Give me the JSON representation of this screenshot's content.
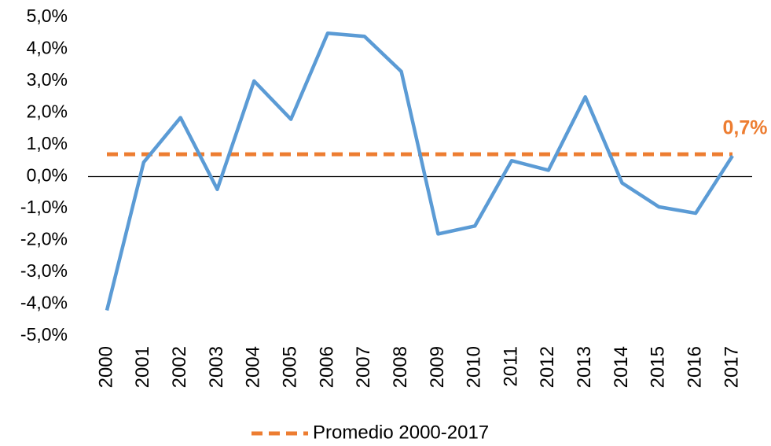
{
  "chart_data": {
    "type": "line",
    "categories": [
      "2000",
      "2001",
      "2002",
      "2003",
      "2004",
      "2005",
      "2006",
      "2007",
      "2008",
      "2009",
      "2010",
      "2011",
      "2012",
      "2013",
      "2014",
      "2015",
      "2016",
      "2017"
    ],
    "series": [
      {
        "color": "#5b9bd5",
        "values": [
          -4.2,
          0.45,
          1.85,
          -0.4,
          3.0,
          1.8,
          4.5,
          4.4,
          3.3,
          -1.8,
          -1.55,
          0.5,
          0.2,
          2.5,
          -0.2,
          -0.95,
          -1.15,
          0.65
        ]
      }
    ],
    "average": {
      "name": "Promedio 2000-2017",
      "color": "#ed7d31",
      "value": 0.7,
      "value_label": "0,7%"
    },
    "ylim": [
      -5,
      5
    ],
    "yticks": [
      {
        "value": -5,
        "label": "-5,0%"
      },
      {
        "value": -4,
        "label": "-4,0%"
      },
      {
        "value": -3,
        "label": "-3,0%"
      },
      {
        "value": -2,
        "label": "-2,0%"
      },
      {
        "value": -1,
        "label": "-1,0%"
      },
      {
        "value": 0,
        "label": "0,0%"
      },
      {
        "value": 1,
        "label": "1,0%"
      },
      {
        "value": 2,
        "label": "2,0%"
      },
      {
        "value": 3,
        "label": "3,0%"
      },
      {
        "value": 4,
        "label": "4,0%"
      },
      {
        "value": 5,
        "label": "5,0%"
      }
    ],
    "legend": "bottom"
  }
}
